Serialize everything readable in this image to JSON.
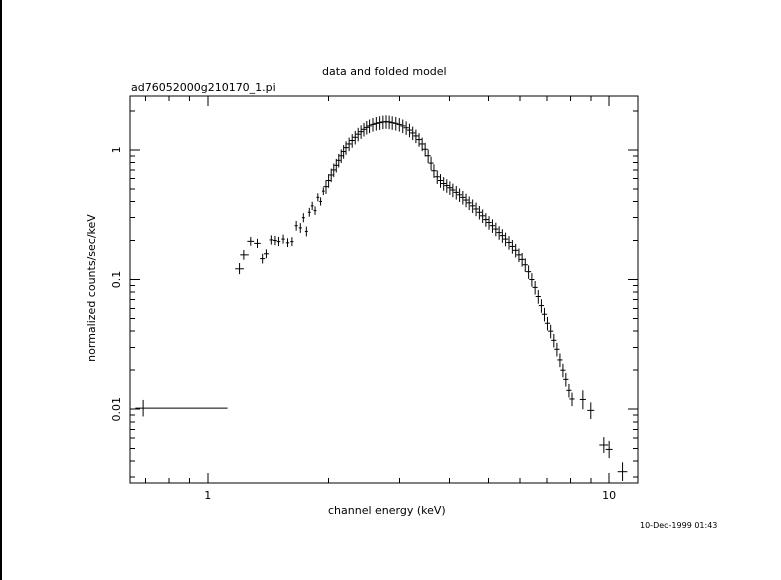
{
  "chart_data": {
    "type": "scatter",
    "title": "data and folded model",
    "subtitle": "ad76052000g210170_1.pi",
    "xlabel": "channel energy (keV)",
    "ylabel": "normalized counts/sec/keV",
    "timestamp": "10-Dec-1999 01:43",
    "xscale": "log",
    "yscale": "log",
    "xlim": [
      0.64,
      11.8
    ],
    "ylim": [
      0.0027,
      2.6
    ],
    "x_ticks": [
      {
        "value": 1,
        "label": "1"
      },
      {
        "value": 10,
        "label": "10"
      }
    ],
    "y_ticks": [
      {
        "value": 0.01,
        "label": "0.01"
      },
      {
        "value": 0.1,
        "label": "0.1"
      },
      {
        "value": 1,
        "label": "1"
      }
    ],
    "grid": false,
    "legend": "none",
    "style": {
      "color": "#000000",
      "background": "#ffffff"
    },
    "series": [
      {
        "errorbars": true,
        "points": [
          {
            "x": 0.69,
            "y": 0.0102,
            "xerr_lo": 0.66,
            "xerr_hi": 1.12,
            "yerr_lo": 0.0088,
            "yerr_hi": 0.0118
          },
          {
            "x": 1.2,
            "y": 0.121,
            "xerr_lo": 1.17,
            "xerr_hi": 1.23,
            "yerr_lo": 0.11,
            "yerr_hi": 0.134
          },
          {
            "x": 1.23,
            "y": 0.155,
            "xerr_lo": 1.205,
            "xerr_hi": 1.265,
            "yerr_lo": 0.142,
            "yerr_hi": 0.169
          },
          {
            "x": 1.28,
            "y": 0.197,
            "xerr_lo": 1.255,
            "xerr_hi": 1.305,
            "yerr_lo": 0.182,
            "yerr_hi": 0.213
          },
          {
            "x": 1.33,
            "y": 0.19,
            "xerr_lo": 1.305,
            "xerr_hi": 1.355,
            "yerr_lo": 0.175,
            "yerr_hi": 0.206
          },
          {
            "x": 1.37,
            "y": 0.145,
            "xerr_lo": 1.35,
            "xerr_hi": 1.39,
            "yerr_lo": 0.133,
            "yerr_hi": 0.158
          },
          {
            "x": 1.4,
            "y": 0.158,
            "xerr_lo": 1.38,
            "xerr_hi": 1.42,
            "yerr_lo": 0.146,
            "yerr_hi": 0.171
          },
          {
            "x": 1.44,
            "y": 0.202,
            "xerr_lo": 1.425,
            "xerr_hi": 1.455,
            "yerr_lo": 0.186,
            "yerr_hi": 0.219
          },
          {
            "x": 1.47,
            "y": 0.2,
            "xerr_lo": 1.455,
            "xerr_hi": 1.485,
            "yerr_lo": 0.184,
            "yerr_hi": 0.217
          },
          {
            "x": 1.5,
            "y": 0.196,
            "xerr_lo": 1.485,
            "xerr_hi": 1.515,
            "yerr_lo": 0.181,
            "yerr_hi": 0.213
          },
          {
            "x": 1.54,
            "y": 0.205,
            "xerr_lo": 1.525,
            "xerr_hi": 1.555,
            "yerr_lo": 0.189,
            "yerr_hi": 0.222
          },
          {
            "x": 1.58,
            "y": 0.192,
            "xerr_lo": 1.565,
            "xerr_hi": 1.595,
            "yerr_lo": 0.178,
            "yerr_hi": 0.208
          },
          {
            "x": 1.62,
            "y": 0.196,
            "xerr_lo": 1.605,
            "xerr_hi": 1.635,
            "yerr_lo": 0.181,
            "yerr_hi": 0.212
          },
          {
            "x": 1.66,
            "y": 0.26,
            "xerr_lo": 1.645,
            "xerr_hi": 1.675,
            "yerr_lo": 0.238,
            "yerr_hi": 0.283
          },
          {
            "x": 1.7,
            "y": 0.25,
            "xerr_lo": 1.685,
            "xerr_hi": 1.715,
            "yerr_lo": 0.229,
            "yerr_hi": 0.272
          },
          {
            "x": 1.73,
            "y": 0.3,
            "xerr_lo": 1.715,
            "xerr_hi": 1.745,
            "yerr_lo": 0.276,
            "yerr_hi": 0.325
          },
          {
            "x": 1.76,
            "y": 0.235,
            "xerr_lo": 1.745,
            "xerr_hi": 1.775,
            "yerr_lo": 0.215,
            "yerr_hi": 0.256
          },
          {
            "x": 1.79,
            "y": 0.33,
            "xerr_lo": 1.775,
            "xerr_hi": 1.805,
            "yerr_lo": 0.305,
            "yerr_hi": 0.357
          },
          {
            "x": 1.82,
            "y": 0.37,
            "xerr_lo": 1.805,
            "xerr_hi": 1.835,
            "yerr_lo": 0.343,
            "yerr_hi": 0.398
          },
          {
            "x": 1.85,
            "y": 0.34,
            "xerr_lo": 1.835,
            "xerr_hi": 1.865,
            "yerr_lo": 0.315,
            "yerr_hi": 0.366
          },
          {
            "x": 1.88,
            "y": 0.43,
            "xerr_lo": 1.865,
            "xerr_hi": 1.895,
            "yerr_lo": 0.4,
            "yerr_hi": 0.462
          },
          {
            "x": 1.91,
            "y": 0.4,
            "xerr_lo": 1.895,
            "xerr_hi": 1.925,
            "yerr_lo": 0.372,
            "yerr_hi": 0.43
          },
          {
            "x": 1.94,
            "y": 0.48,
            "xerr_lo": 1.925,
            "xerr_hi": 1.955,
            "yerr_lo": 0.448,
            "yerr_hi": 0.513
          }
        ]
      },
      {
        "errorbars": true,
        "points": [
          {
            "x": 1.97,
            "y": 0.52
          },
          {
            "x": 2.0,
            "y": 0.58
          },
          {
            "x": 2.03,
            "y": 0.64
          },
          {
            "x": 2.06,
            "y": 0.7
          },
          {
            "x": 2.09,
            "y": 0.76
          },
          {
            "x": 2.12,
            "y": 0.83
          },
          {
            "x": 2.15,
            "y": 0.9
          },
          {
            "x": 2.18,
            "y": 0.97
          },
          {
            "x": 2.21,
            "y": 1.04
          },
          {
            "x": 2.25,
            "y": 1.11
          },
          {
            "x": 2.29,
            "y": 1.18
          },
          {
            "x": 2.33,
            "y": 1.25
          },
          {
            "x": 2.37,
            "y": 1.32
          },
          {
            "x": 2.41,
            "y": 1.38
          },
          {
            "x": 2.45,
            "y": 1.44
          },
          {
            "x": 2.49,
            "y": 1.49
          },
          {
            "x": 2.53,
            "y": 1.53
          },
          {
            "x": 2.58,
            "y": 1.57
          },
          {
            "x": 2.63,
            "y": 1.6
          },
          {
            "x": 2.68,
            "y": 1.62
          },
          {
            "x": 2.73,
            "y": 1.64
          },
          {
            "x": 2.78,
            "y": 1.65
          },
          {
            "x": 2.83,
            "y": 1.64
          },
          {
            "x": 2.88,
            "y": 1.62
          },
          {
            "x": 2.94,
            "y": 1.6
          },
          {
            "x": 3.0,
            "y": 1.57
          },
          {
            "x": 3.06,
            "y": 1.53
          },
          {
            "x": 3.12,
            "y": 1.48
          },
          {
            "x": 3.18,
            "y": 1.42
          },
          {
            "x": 3.24,
            "y": 1.35
          },
          {
            "x": 3.3,
            "y": 1.28
          },
          {
            "x": 3.36,
            "y": 1.2
          },
          {
            "x": 3.42,
            "y": 1.11
          },
          {
            "x": 3.48,
            "y": 1.01
          },
          {
            "x": 3.54,
            "y": 0.9
          },
          {
            "x": 3.6,
            "y": 0.79
          },
          {
            "x": 3.66,
            "y": 0.69
          },
          {
            "x": 3.73,
            "y": 0.62
          },
          {
            "x": 3.8,
            "y": 0.58
          },
          {
            "x": 3.87,
            "y": 0.55
          },
          {
            "x": 3.94,
            "y": 0.53
          },
          {
            "x": 4.01,
            "y": 0.51
          },
          {
            "x": 4.08,
            "y": 0.49
          },
          {
            "x": 4.16,
            "y": 0.47
          },
          {
            "x": 4.24,
            "y": 0.45
          },
          {
            "x": 4.32,
            "y": 0.43
          },
          {
            "x": 4.4,
            "y": 0.41
          },
          {
            "x": 4.48,
            "y": 0.39
          },
          {
            "x": 4.57,
            "y": 0.37
          },
          {
            "x": 4.66,
            "y": 0.35
          },
          {
            "x": 4.75,
            "y": 0.33
          },
          {
            "x": 4.84,
            "y": 0.31
          },
          {
            "x": 4.93,
            "y": 0.29
          },
          {
            "x": 5.02,
            "y": 0.275
          },
          {
            "x": 5.12,
            "y": 0.26
          },
          {
            "x": 5.22,
            "y": 0.245
          },
          {
            "x": 5.32,
            "y": 0.23
          },
          {
            "x": 5.42,
            "y": 0.218
          },
          {
            "x": 5.52,
            "y": 0.205
          },
          {
            "x": 5.63,
            "y": 0.193
          },
          {
            "x": 5.74,
            "y": 0.18
          },
          {
            "x": 5.85,
            "y": 0.168
          },
          {
            "x": 5.96,
            "y": 0.155
          },
          {
            "x": 6.07,
            "y": 0.143
          },
          {
            "x": 6.18,
            "y": 0.13
          },
          {
            "x": 6.3,
            "y": 0.115
          },
          {
            "x": 6.42,
            "y": 0.1
          },
          {
            "x": 6.54,
            "y": 0.087
          },
          {
            "x": 6.66,
            "y": 0.074
          },
          {
            "x": 6.78,
            "y": 0.063
          },
          {
            "x": 6.9,
            "y": 0.054
          },
          {
            "x": 7.02,
            "y": 0.046
          },
          {
            "x": 7.15,
            "y": 0.04
          },
          {
            "x": 7.28,
            "y": 0.034
          },
          {
            "x": 7.41,
            "y": 0.029
          },
          {
            "x": 7.54,
            "y": 0.024
          },
          {
            "x": 7.67,
            "y": 0.02
          },
          {
            "x": 7.8,
            "y": 0.017
          },
          {
            "x": 7.94,
            "y": 0.014
          },
          {
            "x": 8.08,
            "y": 0.012
          }
        ]
      },
      {
        "errorbars": true,
        "points": [
          {
            "x": 8.6,
            "y": 0.0119,
            "xerr_lo": 8.45,
            "xerr_hi": 8.75,
            "yerr_lo": 0.01,
            "yerr_hi": 0.014
          },
          {
            "x": 9.0,
            "y": 0.0098,
            "xerr_lo": 8.82,
            "xerr_hi": 9.18,
            "yerr_lo": 0.0084,
            "yerr_hi": 0.0113
          },
          {
            "x": 9.7,
            "y": 0.0053,
            "xerr_lo": 9.45,
            "xerr_hi": 9.95,
            "yerr_lo": 0.0046,
            "yerr_hi": 0.0061
          },
          {
            "x": 10.0,
            "y": 0.0049,
            "xerr_lo": 9.8,
            "xerr_hi": 10.2,
            "yerr_lo": 0.0042,
            "yerr_hi": 0.0057
          },
          {
            "x": 10.8,
            "y": 0.0033,
            "xerr_lo": 10.5,
            "xerr_hi": 11.1,
            "yerr_lo": 0.0028,
            "yerr_hi": 0.0039
          }
        ]
      }
    ]
  }
}
